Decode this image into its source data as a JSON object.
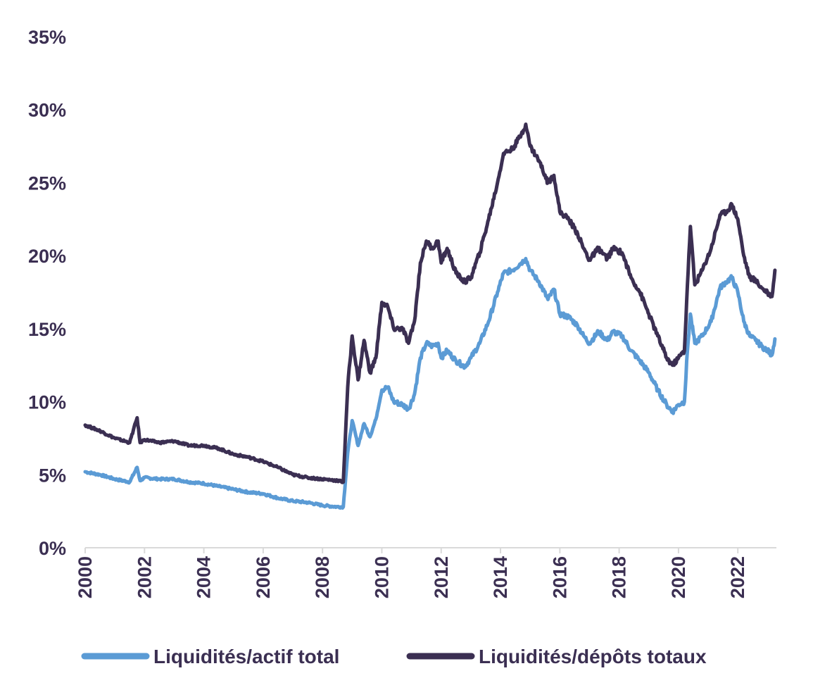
{
  "chart_data": {
    "type": "line",
    "title": "",
    "xlabel": "",
    "ylabel": "",
    "xlim": [
      2000,
      2023.3
    ],
    "ylim": [
      0,
      35
    ],
    "y_ticks": [
      0,
      5,
      10,
      15,
      20,
      25,
      30,
      35
    ],
    "y_tick_labels": [
      "0%",
      "5%",
      "10%",
      "15%",
      "20%",
      "25%",
      "30%",
      "35%"
    ],
    "x_ticks": [
      2000,
      2002,
      2004,
      2006,
      2008,
      2010,
      2012,
      2014,
      2016,
      2018,
      2020,
      2022
    ],
    "x_tick_labels": [
      "2000",
      "2002",
      "2004",
      "2006",
      "2008",
      "2010",
      "2012",
      "2014",
      "2016",
      "2018",
      "2020",
      "2022"
    ],
    "grid": false,
    "legend_position": "bottom",
    "series": [
      {
        "name": "Liquidités/actif total",
        "color": "#5b9bd5",
        "points": [
          [
            2000.0,
            5.2
          ],
          [
            2000.5,
            5.0
          ],
          [
            2001.0,
            4.7
          ],
          [
            2001.5,
            4.5
          ],
          [
            2001.75,
            5.5
          ],
          [
            2001.85,
            4.6
          ],
          [
            2002.0,
            4.8
          ],
          [
            2002.5,
            4.7
          ],
          [
            2003.0,
            4.7
          ],
          [
            2003.5,
            4.5
          ],
          [
            2004.0,
            4.4
          ],
          [
            2004.5,
            4.2
          ],
          [
            2005.0,
            4.0
          ],
          [
            2005.5,
            3.8
          ],
          [
            2006.0,
            3.7
          ],
          [
            2006.5,
            3.4
          ],
          [
            2007.0,
            3.2
          ],
          [
            2007.5,
            3.1
          ],
          [
            2008.0,
            2.9
          ],
          [
            2008.5,
            2.8
          ],
          [
            2008.7,
            2.8
          ],
          [
            2008.85,
            6.5
          ],
          [
            2009.0,
            8.7
          ],
          [
            2009.2,
            7.0
          ],
          [
            2009.4,
            8.5
          ],
          [
            2009.6,
            7.6
          ],
          [
            2009.8,
            8.8
          ],
          [
            2010.0,
            10.8
          ],
          [
            2010.2,
            11.0
          ],
          [
            2010.4,
            10.0
          ],
          [
            2010.7,
            9.8
          ],
          [
            2010.9,
            9.5
          ],
          [
            2011.1,
            10.5
          ],
          [
            2011.3,
            13.0
          ],
          [
            2011.5,
            14.0
          ],
          [
            2011.7,
            13.8
          ],
          [
            2011.9,
            14.0
          ],
          [
            2012.0,
            13.0
          ],
          [
            2012.2,
            13.5
          ],
          [
            2012.5,
            12.8
          ],
          [
            2012.8,
            12.4
          ],
          [
            2013.0,
            13.0
          ],
          [
            2013.3,
            14.0
          ],
          [
            2013.6,
            15.5
          ],
          [
            2013.9,
            17.5
          ],
          [
            2014.1,
            18.8
          ],
          [
            2014.4,
            19.0
          ],
          [
            2014.7,
            19.5
          ],
          [
            2014.85,
            19.8
          ],
          [
            2015.0,
            19.0
          ],
          [
            2015.3,
            18.2
          ],
          [
            2015.6,
            17.0
          ],
          [
            2015.8,
            17.7
          ],
          [
            2016.0,
            16.0
          ],
          [
            2016.3,
            15.8
          ],
          [
            2016.6,
            15.2
          ],
          [
            2016.8,
            14.5
          ],
          [
            2017.0,
            14.0
          ],
          [
            2017.3,
            14.8
          ],
          [
            2017.6,
            14.2
          ],
          [
            2017.8,
            14.8
          ],
          [
            2018.1,
            14.5
          ],
          [
            2018.4,
            13.5
          ],
          [
            2018.7,
            12.8
          ],
          [
            2019.0,
            12.0
          ],
          [
            2019.3,
            10.8
          ],
          [
            2019.6,
            9.8
          ],
          [
            2019.8,
            9.3
          ],
          [
            2020.0,
            9.8
          ],
          [
            2020.2,
            10.0
          ],
          [
            2020.3,
            13.5
          ],
          [
            2020.4,
            16.0
          ],
          [
            2020.55,
            14.0
          ],
          [
            2020.8,
            14.5
          ],
          [
            2021.1,
            15.5
          ],
          [
            2021.4,
            17.8
          ],
          [
            2021.6,
            18.2
          ],
          [
            2021.8,
            18.5
          ],
          [
            2022.0,
            17.5
          ],
          [
            2022.2,
            15.5
          ],
          [
            2022.4,
            14.5
          ],
          [
            2022.6,
            14.2
          ],
          [
            2022.8,
            13.8
          ],
          [
            2023.0,
            13.5
          ],
          [
            2023.15,
            13.2
          ],
          [
            2023.25,
            14.3
          ]
        ]
      },
      {
        "name": "Liquidités/dépôts totaux",
        "color": "#3b2f52",
        "points": [
          [
            2000.0,
            8.4
          ],
          [
            2000.5,
            8.0
          ],
          [
            2001.0,
            7.5
          ],
          [
            2001.5,
            7.2
          ],
          [
            2001.75,
            8.9
          ],
          [
            2001.85,
            7.2
          ],
          [
            2002.0,
            7.4
          ],
          [
            2002.5,
            7.2
          ],
          [
            2003.0,
            7.3
          ],
          [
            2003.5,
            7.0
          ],
          [
            2004.0,
            7.0
          ],
          [
            2004.5,
            6.8
          ],
          [
            2005.0,
            6.4
          ],
          [
            2005.5,
            6.2
          ],
          [
            2006.0,
            5.9
          ],
          [
            2006.5,
            5.5
          ],
          [
            2007.0,
            5.0
          ],
          [
            2007.5,
            4.8
          ],
          [
            2008.0,
            4.7
          ],
          [
            2008.5,
            4.6
          ],
          [
            2008.7,
            4.5
          ],
          [
            2008.85,
            11.0
          ],
          [
            2009.0,
            14.5
          ],
          [
            2009.2,
            11.5
          ],
          [
            2009.4,
            14.2
          ],
          [
            2009.6,
            12.0
          ],
          [
            2009.8,
            13.0
          ],
          [
            2010.0,
            16.8
          ],
          [
            2010.2,
            16.5
          ],
          [
            2010.4,
            15.0
          ],
          [
            2010.7,
            15.0
          ],
          [
            2010.9,
            14.0
          ],
          [
            2011.1,
            15.5
          ],
          [
            2011.3,
            19.5
          ],
          [
            2011.5,
            21.0
          ],
          [
            2011.7,
            20.5
          ],
          [
            2011.9,
            21.0
          ],
          [
            2012.0,
            19.5
          ],
          [
            2012.2,
            20.5
          ],
          [
            2012.5,
            18.8
          ],
          [
            2012.8,
            18.2
          ],
          [
            2013.0,
            18.5
          ],
          [
            2013.3,
            20.2
          ],
          [
            2013.6,
            22.5
          ],
          [
            2013.9,
            25.0
          ],
          [
            2014.1,
            27.0
          ],
          [
            2014.4,
            27.3
          ],
          [
            2014.7,
            28.3
          ],
          [
            2014.85,
            29.0
          ],
          [
            2015.0,
            27.5
          ],
          [
            2015.3,
            26.5
          ],
          [
            2015.6,
            25.0
          ],
          [
            2015.8,
            25.5
          ],
          [
            2016.0,
            23.0
          ],
          [
            2016.3,
            22.5
          ],
          [
            2016.6,
            21.5
          ],
          [
            2016.8,
            20.5
          ],
          [
            2017.0,
            19.7
          ],
          [
            2017.3,
            20.5
          ],
          [
            2017.6,
            19.8
          ],
          [
            2017.8,
            20.5
          ],
          [
            2018.1,
            20.2
          ],
          [
            2018.4,
            18.5
          ],
          [
            2018.7,
            17.5
          ],
          [
            2019.0,
            16.0
          ],
          [
            2019.3,
            14.5
          ],
          [
            2019.6,
            13.0
          ],
          [
            2019.8,
            12.5
          ],
          [
            2020.0,
            13.0
          ],
          [
            2020.2,
            13.5
          ],
          [
            2020.3,
            18.0
          ],
          [
            2020.4,
            22.0
          ],
          [
            2020.55,
            18.0
          ],
          [
            2020.8,
            19.0
          ],
          [
            2021.1,
            20.5
          ],
          [
            2021.4,
            22.8
          ],
          [
            2021.6,
            23.0
          ],
          [
            2021.8,
            23.5
          ],
          [
            2022.0,
            22.5
          ],
          [
            2022.2,
            20.0
          ],
          [
            2022.4,
            18.5
          ],
          [
            2022.6,
            18.3
          ],
          [
            2022.8,
            17.8
          ],
          [
            2023.0,
            17.5
          ],
          [
            2023.15,
            17.2
          ],
          [
            2023.25,
            19.0
          ]
        ]
      }
    ]
  }
}
